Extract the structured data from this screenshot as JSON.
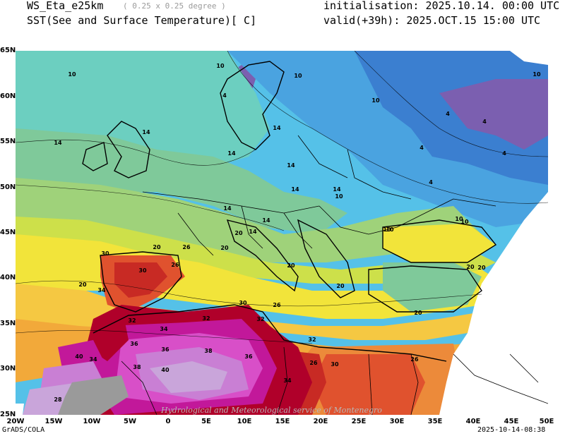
{
  "header": {
    "model": "WS_Eta_e25km",
    "resolution": "( 0.25 x 0.25 degree )",
    "variable": "SST(See and Surface Temperature)[ C]",
    "initialisation": "initialisation: 2025.10.14. 00:00 UTC",
    "valid": "valid(+39h): 2025.OCT.15 15:00 UTC"
  },
  "axes": {
    "x_ticks": [
      "20W",
      "15W",
      "10W",
      "5W",
      "0",
      "5E",
      "10E",
      "15E",
      "20E",
      "25E",
      "30E",
      "35E",
      "40E",
      "45E",
      "50E"
    ],
    "y_ticks": [
      "65N",
      "60N",
      "55N",
      "50N",
      "45N",
      "40N",
      "35N",
      "30N",
      "25N"
    ]
  },
  "contour_labels": [
    "10",
    "10",
    "10",
    "4",
    "4",
    "4",
    "4",
    "4",
    "4",
    "10",
    "10",
    "14",
    "14",
    "14",
    "14",
    "14",
    "14",
    "14",
    "14",
    "14",
    "14",
    "10",
    "10",
    "10",
    "10",
    "10",
    "20",
    "20",
    "20",
    "20",
    "20",
    "20",
    "20",
    "20",
    "20",
    "26",
    "26",
    "26",
    "26",
    "26",
    "30",
    "30",
    "30",
    "30",
    "32",
    "32",
    "32",
    "32",
    "34",
    "34",
    "34",
    "34",
    "36",
    "36",
    "36",
    "38",
    "38",
    "40",
    "40",
    "28"
  ],
  "footer": {
    "left": "GrADS/COLA",
    "right": "2025-10-14-08:38",
    "watermark": "Hydrological and Meteorological service of Montenegro"
  },
  "colors": {
    "t4": "#7b5fb0",
    "t6": "#3b7fd0",
    "t8": "#4aa3e0",
    "t10": "#55c1e8",
    "t12": "#6ccfc0",
    "t14": "#7fc99a",
    "t16": "#9fd27a",
    "t18": "#cde04a",
    "t20": "#f2e43a",
    "t22": "#f5c842",
    "t24": "#f2a93a",
    "t26": "#ec8a3a",
    "t28": "#e0522e",
    "t30": "#c82a24",
    "t32": "#b0002a",
    "t34": "#c2189a",
    "t36": "#d84fc8",
    "t38": "#c97fd4",
    "t40": "#c9a5da",
    "land_no_data": "#ffffff",
    "desert_grey": "#9a9a9a"
  }
}
